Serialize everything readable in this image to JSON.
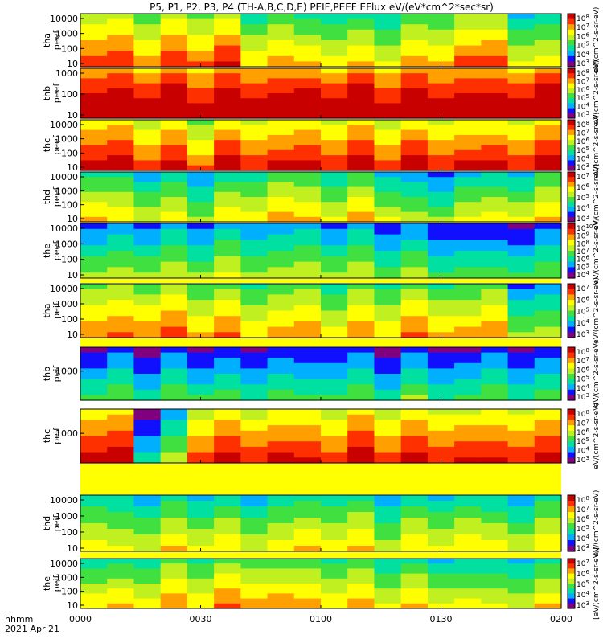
{
  "title": "P5, P1, P2, P3, P4 (TH-A,B,C,D,E) PEIF,PEEF EFlux eV/(eV*cm^2*sec*sr)",
  "time_axis": {
    "label_line1": "hhmm",
    "label_line2": "2021 Apr 21",
    "ticks": [
      "0000",
      "0030",
      "0100",
      "0130",
      "0200"
    ]
  },
  "colors": {
    "colormap": [
      "#800080",
      "#1010ff",
      "#00b0ff",
      "#00e0a0",
      "#40e040",
      "#c0f020",
      "#ffff00",
      "#ffa000",
      "#ff3000",
      "#c80000"
    ]
  },
  "chart_data": [
    {
      "type": "heatmap",
      "panel": "tha peef",
      "ylabel": [
        "tha",
        "peef"
      ],
      "yscale": "log",
      "yticks": [
        "10",
        "100",
        "1000",
        "10000"
      ],
      "colorbar_ticks": [
        "10^8",
        "10^7",
        "10^6",
        "10^5",
        "10^4",
        "10^3"
      ],
      "colorbar_label": "eV/(cm^2-s-sr-eV)",
      "x_start": "0000",
      "x_end": "0200",
      "pattern": [
        6.5,
        6.5,
        6.0,
        6.2,
        6.5,
        6.5,
        5.0,
        5.5,
        4.8,
        5.0,
        4.5,
        4.8,
        5.0,
        5.5,
        6.2,
        6.2,
        4.5,
        4.0
      ]
    },
    {
      "type": "heatmap",
      "panel": "thb peef",
      "ylabel": [
        "thb",
        "peef"
      ],
      "yscale": "log",
      "yticks": [
        "10",
        "100",
        "1000"
      ],
      "colorbar_ticks": [
        "10^8",
        "10^7",
        "10^6",
        "10^5",
        "10^4",
        "10^3"
      ],
      "colorbar_label": "eV/(cm^2-s-sr-eV)",
      "x_start": "0000",
      "x_end": "0200",
      "pattern": [
        8.5,
        8.5,
        8.5,
        8.5,
        8.5,
        8.5,
        8.5,
        8.5,
        8.5,
        8.5,
        8.5,
        8.5,
        8.5,
        8.5,
        8.5,
        8.5,
        8.5,
        8.5
      ]
    },
    {
      "type": "heatmap",
      "panel": "thc peef",
      "ylabel": [
        "thc",
        "peef"
      ],
      "yscale": "log",
      "yticks": [
        "10",
        "100",
        "1000",
        "10000"
      ],
      "colorbar_ticks": [
        "10^8",
        "10^7",
        "10^6",
        "10^5",
        "10^4",
        "10^3"
      ],
      "colorbar_label": "eV/(cm^2-s-sr-eV)",
      "x_start": "0000",
      "x_end": "0200",
      "pattern": [
        7.5,
        7.5,
        7.0,
        7.0,
        6.5,
        7.2,
        7.2,
        7.2,
        7.2,
        7.2,
        7.2,
        7.2,
        7.2,
        7.2,
        7.2,
        7.2,
        7.2,
        7.2
      ]
    },
    {
      "type": "heatmap",
      "panel": "thd peef",
      "ylabel": [
        "thd",
        "peef"
      ],
      "yscale": "log",
      "yticks": [
        "10",
        "100",
        "1000",
        "10000"
      ],
      "colorbar_ticks": [
        "10^7",
        "10^6",
        "10^5",
        "10^4",
        "10^3"
      ],
      "colorbar_label": "eV/(cm^2-s-sr-eV)",
      "x_start": "0000",
      "x_end": "0200",
      "pattern": [
        5.0,
        4.5,
        4.2,
        4.0,
        3.8,
        4.2,
        4.8,
        5.5,
        5.0,
        4.6,
        4.8,
        4.5,
        3.0,
        3.3,
        4.0,
        4.2,
        4.4,
        4.6
      ]
    },
    {
      "type": "heatmap",
      "panel": "the peef",
      "ylabel": [
        "the",
        "peef"
      ],
      "yscale": "log",
      "yticks": [
        "10",
        "100",
        "1000",
        "10000"
      ],
      "colorbar_ticks": [
        "10^10",
        "10^9",
        "10^8",
        "10^7",
        "10^6",
        "10^5",
        "10^4"
      ],
      "colorbar_label": "eV/(cm^2-s-sr-eV)",
      "x_start": "0000",
      "x_end": "0200",
      "pattern": [
        3.0,
        3.2,
        3.4,
        3.3,
        3.5,
        3.6,
        3.6,
        3.5,
        3.6,
        3.4,
        3.2,
        3.0,
        2.8,
        2.5,
        2.3,
        2.2,
        2.4,
        2.2
      ]
    },
    {
      "type": "heatmap",
      "panel": "tha peif",
      "ylabel": [
        "tha",
        "peif"
      ],
      "yscale": "log",
      "yticks": [
        "10",
        "100",
        "1000",
        "10000"
      ],
      "colorbar_ticks": [
        "10^7",
        "10^6",
        "10^5",
        "10^4",
        "10^3"
      ],
      "colorbar_label": "eV/(cm^2-s-sr-eV)",
      "x_start": "0000",
      "x_end": "0200",
      "pattern": [
        5.8,
        6.0,
        6.2,
        6.0,
        5.8,
        5.6,
        5.2,
        5.4,
        5.6,
        5.0,
        5.2,
        5.4,
        5.6,
        5.4,
        5.2,
        5.6,
        3.5,
        3.0
      ]
    },
    {
      "type": "heatmap",
      "panel": "thb peif",
      "ylabel": [
        "thb",
        "peif"
      ],
      "yscale": "log",
      "yticks": [
        "1000"
      ],
      "colorbar_ticks": [
        "10^8",
        "10^7",
        "10^6",
        "10^5",
        "10^4",
        "10^3"
      ],
      "colorbar_label": "eV/(cm^2-s-sr-eV)",
      "x_start": "0000",
      "x_end": "0200",
      "pattern": [
        2.0,
        2.5,
        2.0,
        2.2,
        2.5,
        2.0,
        2.2,
        2.4,
        2.0,
        2.6,
        2.2,
        2.0,
        2.4,
        2.2,
        2.0,
        2.6,
        2.2,
        2.0
      ]
    },
    {
      "type": "heatmap",
      "panel": "thc peif",
      "ylabel": [
        "thc",
        "peif"
      ],
      "yscale": "log",
      "yticks": [
        "1000"
      ],
      "colorbar_ticks": [
        "10^8",
        "10^7",
        "10^6",
        "10^5",
        "10^4",
        "10^3"
      ],
      "colorbar_label": "eV/(cm^2-s-sr-eV)",
      "x_start": "0000",
      "x_end": "0200",
      "pattern": [
        7.5,
        7.5,
        2.0,
        3.0,
        7.0,
        7.0,
        7.0,
        7.2,
        7.0,
        7.0,
        7.2,
        7.0,
        7.0,
        7.2,
        7.0,
        7.0,
        7.2,
        7.0
      ]
    },
    {
      "type": "heatmap",
      "panel": "thd peif",
      "ylabel": [
        "thd",
        "peif"
      ],
      "yscale": "log",
      "yticks": [
        "10",
        "100",
        "1000",
        "10000"
      ],
      "colorbar_ticks": [
        "10^8",
        "10^7",
        "10^6",
        "10^5",
        "10^4",
        "10^3"
      ],
      "colorbar_label": "eV/(cm^2-s-sr-eV)",
      "x_start": "0000",
      "x_end": "0200",
      "pattern": [
        4.5,
        4.0,
        4.2,
        4.4,
        4.6,
        4.2,
        4.0,
        4.5,
        4.8,
        5.0,
        4.5,
        4.0,
        4.2,
        4.4,
        4.6,
        4.2,
        4.0,
        4.3
      ]
    },
    {
      "type": "heatmap",
      "panel": "the peif",
      "ylabel": [
        "the",
        "peif"
      ],
      "yscale": "log",
      "yticks": [
        "10",
        "100",
        "1000",
        "10000"
      ],
      "colorbar_ticks": [
        "10^7",
        "10^6",
        "10^5",
        "10^4",
        "10^3"
      ],
      "colorbar_label": "[eV/(cm^2-s-sr-eV)]",
      "x_start": "0000",
      "x_end": "0200",
      "pattern": [
        4.6,
        4.8,
        5.0,
        5.2,
        5.4,
        5.6,
        5.8,
        5.6,
        5.4,
        5.2,
        5.0,
        4.8,
        4.6,
        4.4,
        4.2,
        4.0,
        4.2,
        4.4
      ]
    }
  ]
}
